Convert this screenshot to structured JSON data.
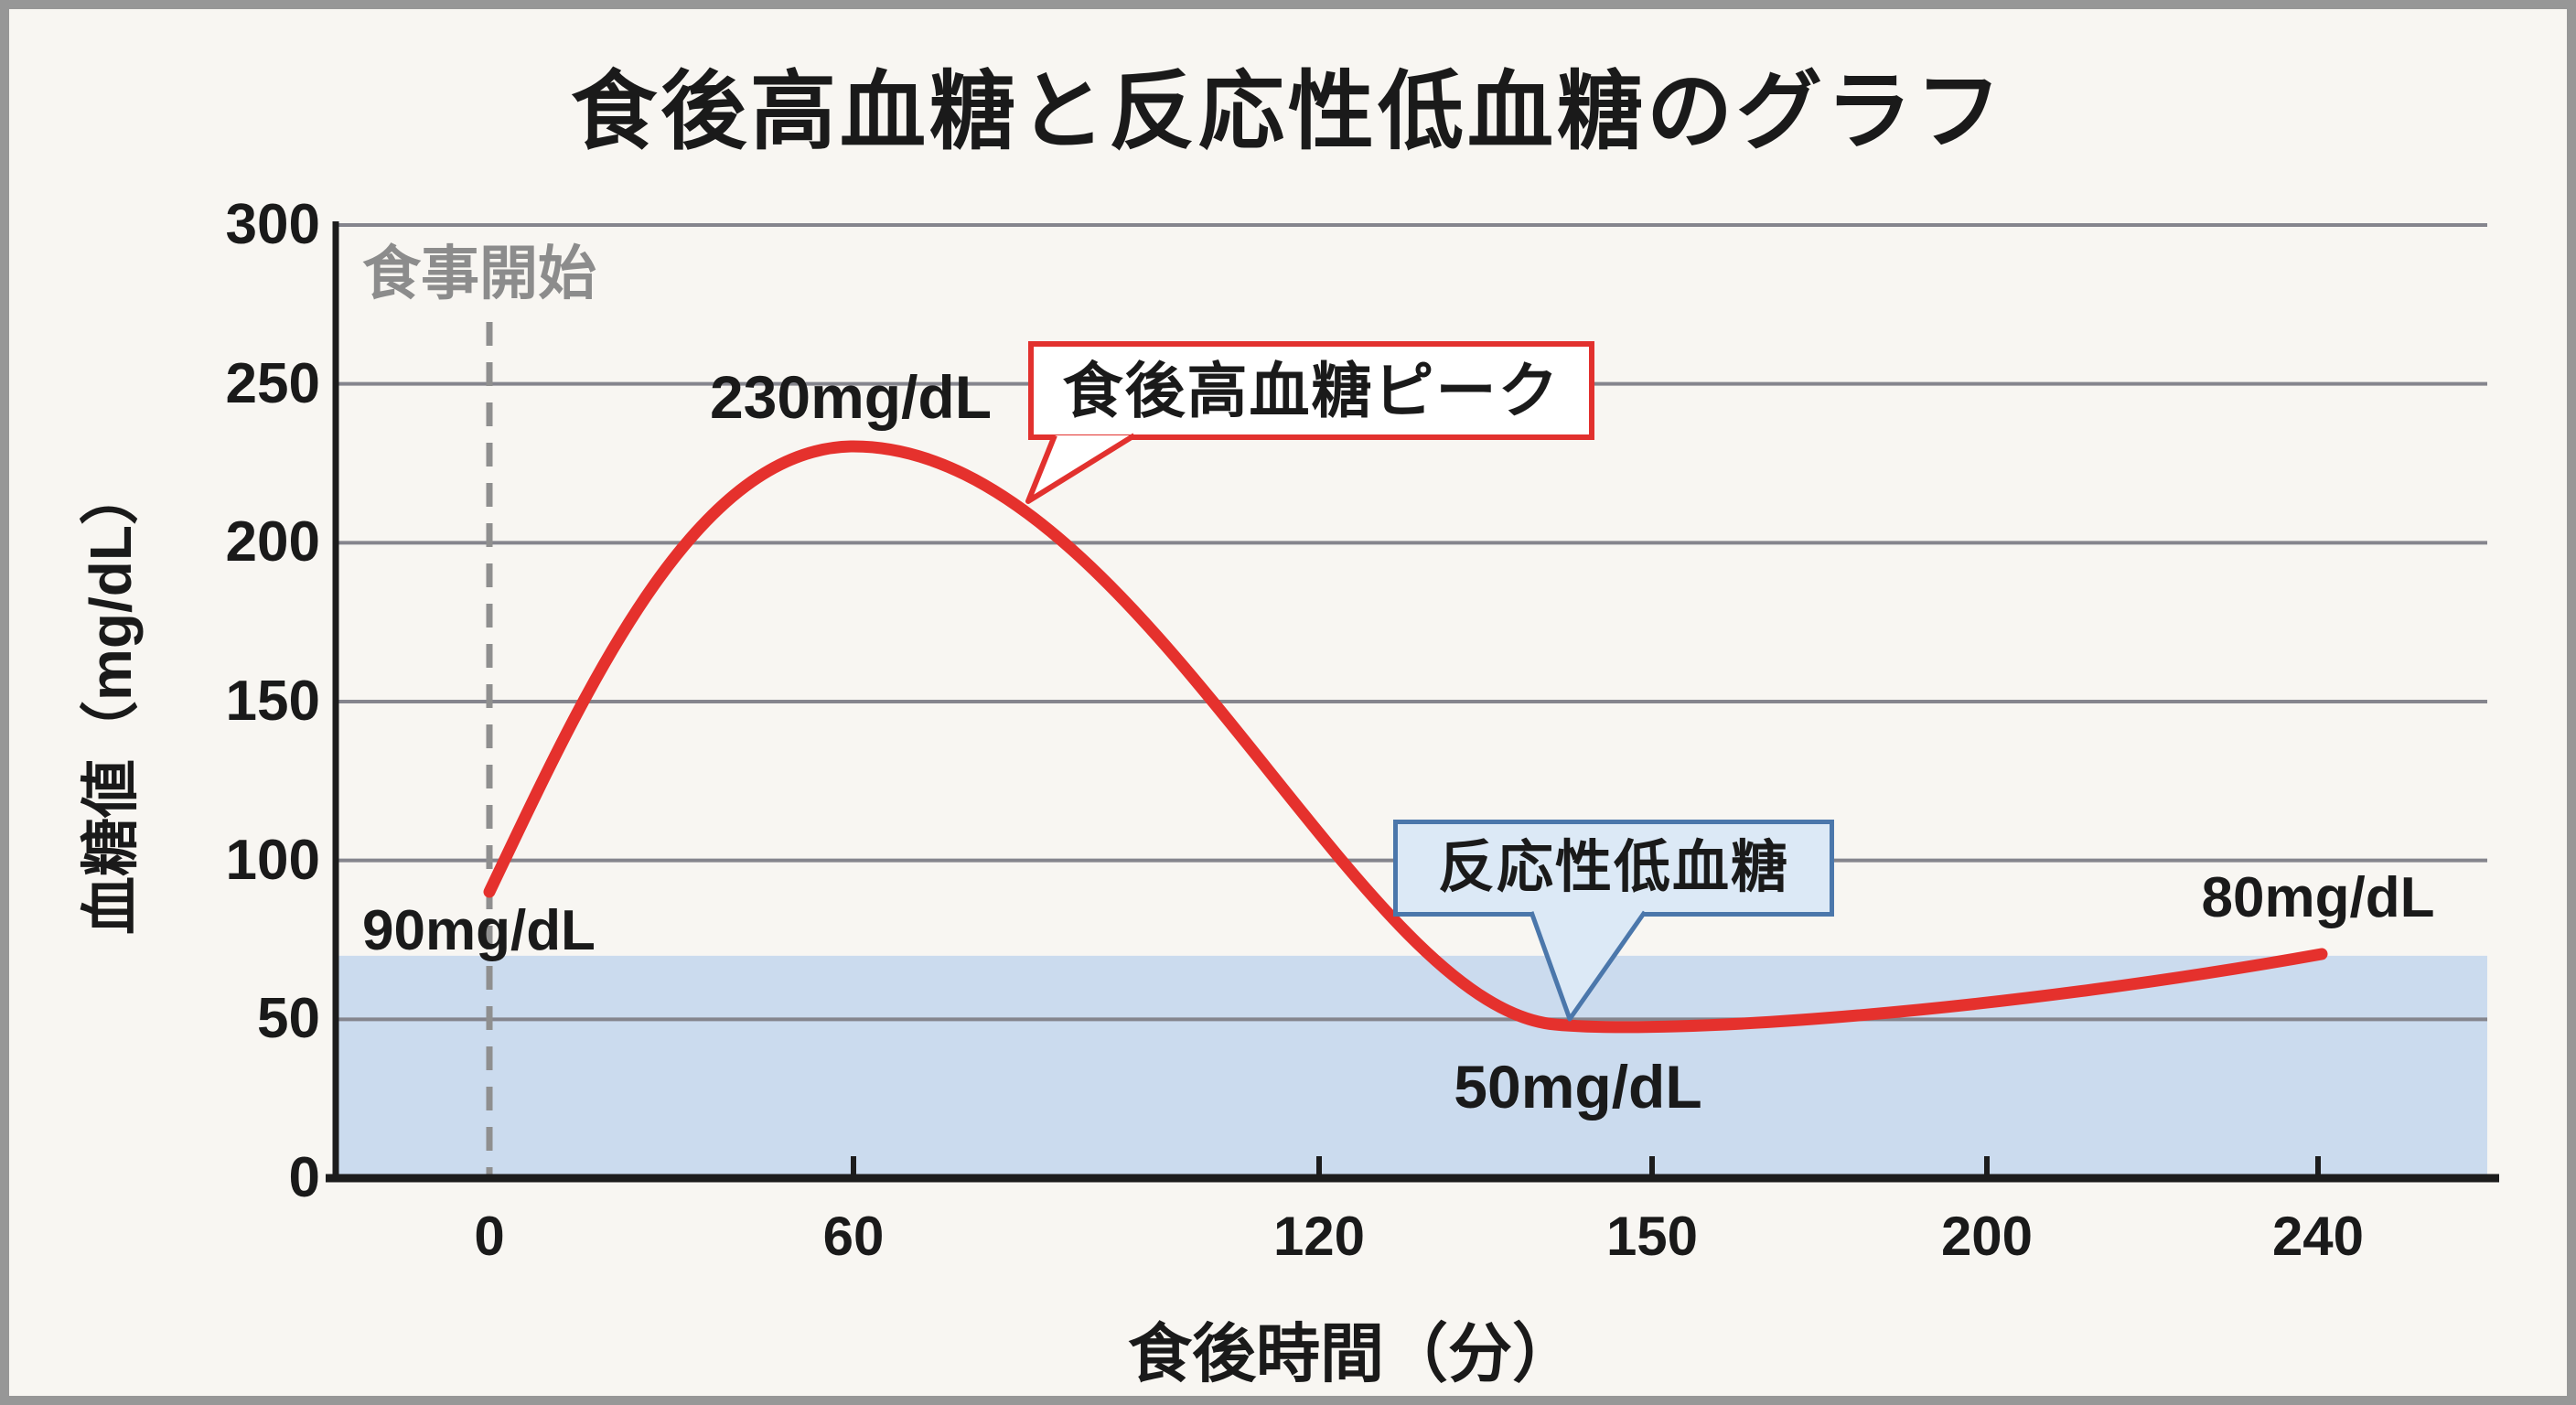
{
  "title": "食後高血糖と反応性低血糖のグラフ",
  "y_axis": {
    "title": "血糖値（mg/dL）",
    "tick_labels": [
      "300",
      "250",
      "200",
      "150",
      "100",
      "50",
      "0"
    ]
  },
  "x_axis": {
    "title": "食後時間（分）",
    "tick_labels": [
      "0",
      "60",
      "120",
      "150",
      "200",
      "240"
    ]
  },
  "meal_start_label": "食事開始",
  "annotations": {
    "start_value": "90mg/dL",
    "peak_value": "230mg/dL",
    "trough_value": "50mg/dL",
    "end_value": "80mg/dL"
  },
  "callouts": {
    "peak": {
      "text": "食後高血糖ピーク",
      "border_color": "#e2312e",
      "fill": "#ffffff"
    },
    "trough": {
      "text": "反応性低血糖",
      "border_color": "#4b77ab",
      "fill": "#dce9f6"
    }
  },
  "colors": {
    "curve": "#e5312d",
    "gridline": "#85858d",
    "dashed_line": "#8f8f8f",
    "hypo_zone": "#cbdbee",
    "axis": "#1c1c1c",
    "meal_start_text": "#8c8c8c",
    "frame": "#979797",
    "background": "#f8f6f2"
  },
  "chart_data": {
    "type": "line",
    "title": "食後高血糖と反応性低血糖のグラフ",
    "xlabel": "食後時間（分）",
    "ylabel": "血糖値（mg/dL）",
    "x_ticks": [
      0,
      60,
      120,
      150,
      200,
      240
    ],
    "ylim": [
      0,
      300
    ],
    "y_tick_step": 50,
    "grid": "horizontal",
    "legend": "none",
    "series": [
      {
        "name": "血糖値",
        "color": "#e5312d",
        "points": [
          {
            "x": 0,
            "y": 90,
            "label": "90mg/dL"
          },
          {
            "x": 60,
            "y": 230,
            "label": "230mg/dL",
            "callout": "食後高血糖ピーク"
          },
          {
            "x": 140,
            "y": 50,
            "label": "50mg/dL",
            "callout": "反応性低血糖"
          },
          {
            "x": 240,
            "y": 80,
            "label": "80mg/dL"
          }
        ]
      }
    ],
    "shaded_zone": {
      "from": 0,
      "to": 70,
      "color": "#cbdbee"
    },
    "vline": {
      "x": 0,
      "style": "dashed",
      "label": "食事開始"
    }
  }
}
